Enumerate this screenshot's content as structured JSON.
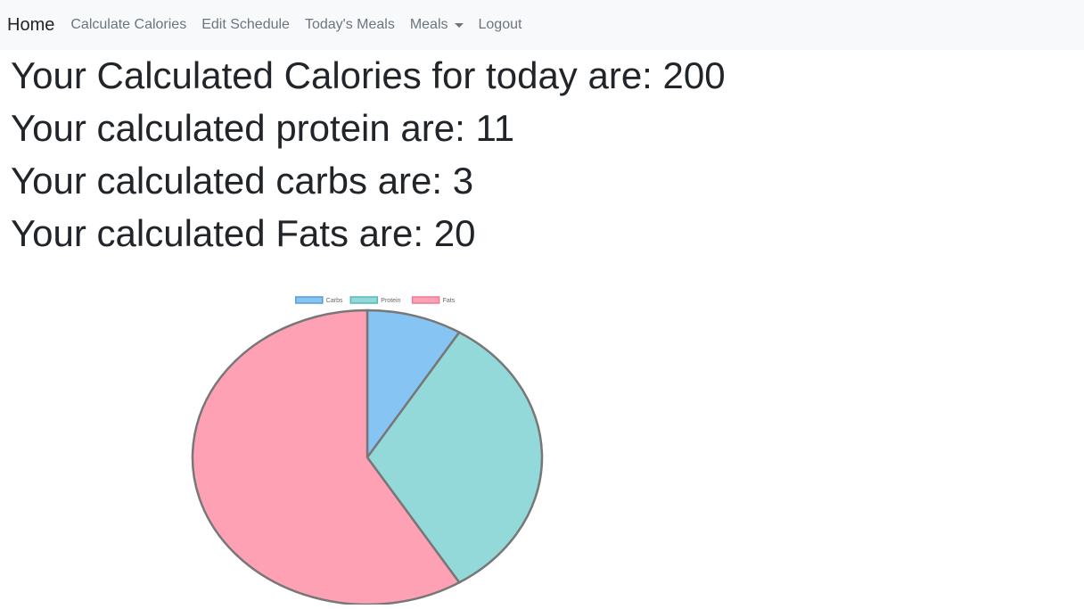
{
  "navbar": {
    "brand": "Home",
    "links": [
      "Calculate Calories",
      "Edit Schedule",
      "Today's Meals"
    ],
    "dropdown_label": "Meals",
    "logout": "Logout"
  },
  "stats": {
    "calories": "Your Calculated Calories for today are: 200",
    "protein": "Your calculated protein are: 11",
    "carbs": "Your calculated carbs are: 3",
    "fats": "Your calculated Fats are: 20"
  },
  "chart_data": {
    "type": "pie",
    "labels": [
      "Carbs",
      "Protein",
      "Fats"
    ],
    "values": [
      3,
      11,
      20
    ],
    "colors": [
      "#86c5f3",
      "#94d9da",
      "#ffa1b4"
    ],
    "borders": [
      "#5a9bd4",
      "#59b8b8",
      "#e87c93"
    ],
    "legend_position": "top"
  }
}
